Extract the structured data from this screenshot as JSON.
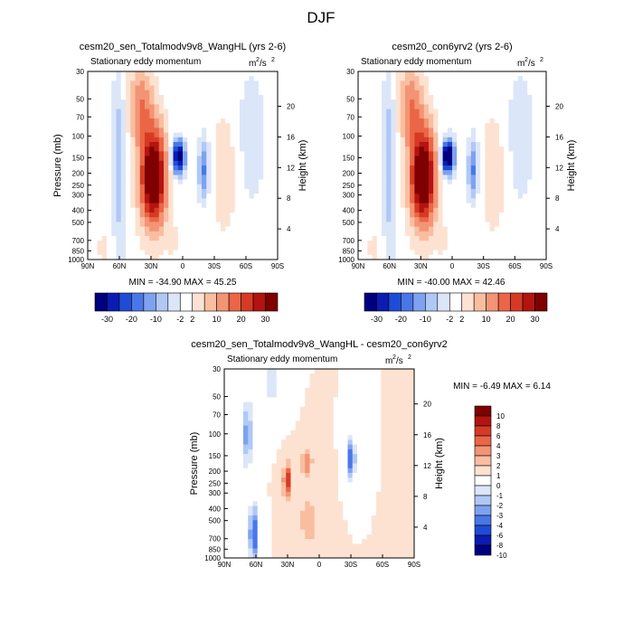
{
  "figure": {
    "title": "DJF"
  },
  "chart_data": [
    {
      "type": "heatmap",
      "title": "cesm20_sen_Totalmodv9v8_WangHL (yrs 2-6)",
      "subtitle": "Stationary eddy momentum",
      "units_label": "m",
      "units_sup_a": "2",
      "units_mid": "/s",
      "units_sup_b": "2",
      "xlabel": "",
      "ylabel": "Pressure (mb)",
      "ylabel_right": "Height (km)",
      "x_ticks": [
        "90N",
        "60N",
        "30N",
        "0",
        "30S",
        "60S",
        "90S"
      ],
      "x_tick_values": [
        90,
        60,
        30,
        0,
        -30,
        -60,
        -90
      ],
      "y_ticks": [
        "30",
        "50",
        "70",
        "100",
        "150",
        "200",
        "250",
        "300",
        "400",
        "500",
        "700",
        "850",
        "1000"
      ],
      "height_ticks": [
        "4",
        "8",
        "12",
        "16",
        "20"
      ],
      "stats": "MIN = -34.90   MAX =  45.25",
      "min": -34.9,
      "max": 45.25
    },
    {
      "type": "heatmap",
      "title": "cesm20_con6yrv2 (yrs 2-6)",
      "subtitle": "Stationary eddy momentum",
      "units_label": "m",
      "units_sup_a": "2",
      "units_mid": "/s",
      "units_sup_b": "2",
      "xlabel": "",
      "ylabel": "",
      "ylabel_right": "Height (km)",
      "x_ticks": [
        "90N",
        "60N",
        "30N",
        "0",
        "30S",
        "60S",
        "90S"
      ],
      "x_tick_values": [
        90,
        60,
        30,
        0,
        -30,
        -60,
        -90
      ],
      "y_ticks": [
        "30",
        "50",
        "70",
        "100",
        "150",
        "200",
        "250",
        "300",
        "400",
        "500",
        "700",
        "850",
        "1000"
      ],
      "height_ticks": [
        "4",
        "8",
        "12",
        "16",
        "20"
      ],
      "stats": "MIN = -40.00   MAX =  42.46",
      "min": -40.0,
      "max": 42.46
    },
    {
      "type": "heatmap",
      "title": "cesm20_sen_Totalmodv9v8_WangHL - cesm20_con6yrv2",
      "subtitle": "Stationary eddy momentum",
      "units_label": "m",
      "units_sup_a": "2",
      "units_mid": "/s",
      "units_sup_b": "2",
      "xlabel": "",
      "ylabel": "Pressure (mb)",
      "ylabel_right": "Height (km)",
      "x_ticks": [
        "90N",
        "60N",
        "30N",
        "0",
        "30S",
        "60S",
        "90S"
      ],
      "x_tick_values": [
        90,
        60,
        30,
        0,
        -30,
        -60,
        -90
      ],
      "y_ticks": [
        "30",
        "50",
        "70",
        "100",
        "150",
        "200",
        "250",
        "300",
        "400",
        "500",
        "700",
        "850",
        "1000"
      ],
      "height_ticks": [
        "4",
        "8",
        "12",
        "16",
        "20"
      ],
      "stats": "MIN =  -6.49  MAX =   6.14",
      "min": -6.49,
      "max": 6.14
    }
  ],
  "colorbar_main": {
    "labels": [
      "-30",
      "-20",
      "-10",
      "-2",
      "2",
      "10",
      "20",
      "30"
    ],
    "colors": [
      "#00007f",
      "#0a1cb2",
      "#1f4cd6",
      "#4a77e8",
      "#7da2f0",
      "#b0c8f5",
      "#dbe6f9",
      "#ffffff",
      "#fde2d2",
      "#f9bea0",
      "#f39474",
      "#ea6647",
      "#d63a24",
      "#b41410",
      "#7f0000"
    ]
  },
  "colorbar_diff": {
    "labels": [
      "10",
      "8",
      "6",
      "4",
      "3",
      "2",
      "1",
      "0",
      "-1",
      "-2",
      "-3",
      "-4",
      "-6",
      "-8",
      "-10"
    ],
    "colors": [
      "#7f0000",
      "#b41410",
      "#d63a24",
      "#ea6647",
      "#f39474",
      "#f9bea0",
      "#fde2d2",
      "#ffffff",
      "#dbe6f9",
      "#b0c8f5",
      "#7da2f0",
      "#4a77e8",
      "#1f4cd6",
      "#0a1cb2",
      "#00007f"
    ]
  }
}
